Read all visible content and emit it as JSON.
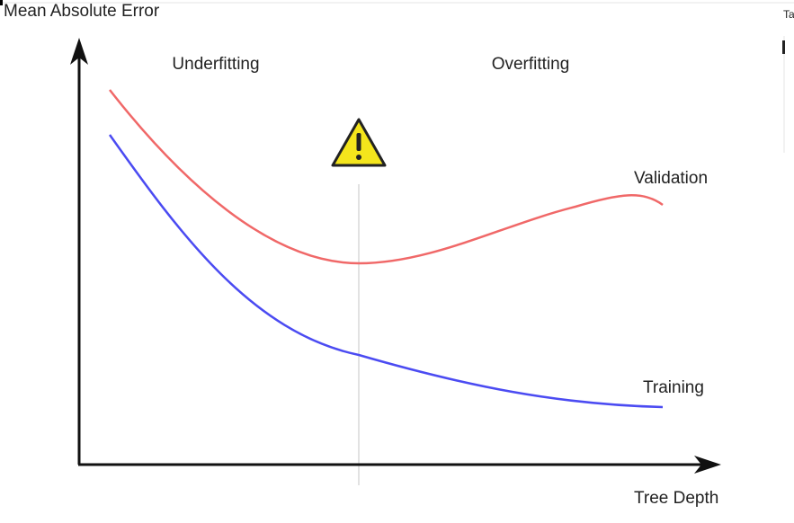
{
  "header": {
    "title": "Mean Absolute Error"
  },
  "regions": [
    {
      "label": "Underfitting"
    },
    {
      "label": "Overfitting"
    }
  ],
  "curves": [
    {
      "label": "Validation"
    },
    {
      "label": "Training"
    }
  ],
  "x_axis": {
    "label": "Tree Depth"
  },
  "sidebar": {
    "text": "Ta"
  }
}
